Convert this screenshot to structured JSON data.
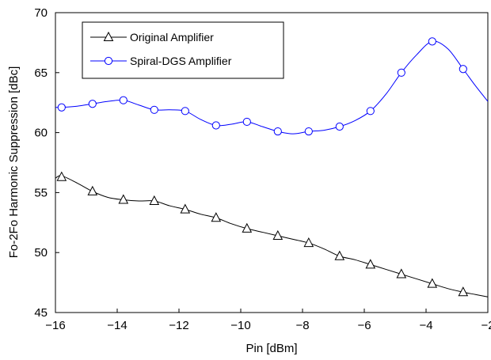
{
  "chart_data": {
    "type": "line",
    "xlabel": "Pin [dBm]",
    "ylabel": "Fo-2Fo Harmonic Suppression [dBc]",
    "xlim": [
      -16,
      -2
    ],
    "ylim": [
      45,
      70
    ],
    "x_ticks": [
      -16,
      -14,
      -12,
      -10,
      -8,
      -6,
      -4,
      -2
    ],
    "y_ticks": [
      45,
      50,
      55,
      60,
      65,
      70
    ],
    "x_tick_labels": [
      "−16",
      "−14",
      "−12",
      "−10",
      "−8",
      "−6",
      "−4",
      "−2"
    ],
    "y_tick_labels": [
      "45",
      "50",
      "55",
      "60",
      "65",
      "70"
    ],
    "grid": false,
    "legend_position": "top-left",
    "series": [
      {
        "name": "Original Amplifier",
        "color": "#000000",
        "marker": "triangle",
        "x": [
          -15.8,
          -14.8,
          -13.8,
          -12.8,
          -11.8,
          -10.8,
          -9.8,
          -8.8,
          -7.8,
          -6.8,
          -5.8,
          -4.8,
          -3.8,
          -2.8
        ],
        "y": [
          56.3,
          55.1,
          54.4,
          54.3,
          53.6,
          52.9,
          52.0,
          51.4,
          50.8,
          49.7,
          49.0,
          48.2,
          47.4,
          46.7
        ],
        "curve_x": [
          -16.0,
          -15.8,
          -15.3,
          -14.8,
          -14.3,
          -13.8,
          -13.3,
          -12.8,
          -12.3,
          -11.8,
          -11.3,
          -10.8,
          -10.3,
          -9.8,
          -9.3,
          -8.8,
          -8.3,
          -7.8,
          -7.3,
          -6.8,
          -6.3,
          -5.8,
          -5.3,
          -4.8,
          -4.3,
          -3.8,
          -3.3,
          -2.8,
          -2.4,
          -2.0
        ],
        "curve_y": [
          56.2,
          56.4,
          55.8,
          55.1,
          54.6,
          54.4,
          54.3,
          54.3,
          53.9,
          53.6,
          53.2,
          52.9,
          52.4,
          52.0,
          51.7,
          51.4,
          51.1,
          50.8,
          50.3,
          49.7,
          49.4,
          49.0,
          48.6,
          48.2,
          47.8,
          47.4,
          47.0,
          46.7,
          46.5,
          46.3
        ]
      },
      {
        "name": "Spiral-DGS Amplifier",
        "color": "#0000ff",
        "marker": "circle",
        "x": [
          -15.8,
          -14.8,
          -13.8,
          -12.8,
          -11.8,
          -10.8,
          -9.8,
          -8.8,
          -7.8,
          -6.8,
          -5.8,
          -4.8,
          -3.8,
          -2.8
        ],
        "y": [
          62.1,
          62.4,
          62.7,
          61.9,
          61.8,
          60.6,
          60.9,
          60.1,
          60.1,
          60.5,
          61.8,
          65.0,
          67.6,
          65.3
        ],
        "curve_x": [
          -16.0,
          -15.8,
          -15.3,
          -14.8,
          -14.3,
          -13.8,
          -13.3,
          -12.8,
          -12.3,
          -11.8,
          -11.3,
          -10.8,
          -10.3,
          -9.8,
          -9.3,
          -8.8,
          -8.3,
          -7.8,
          -7.3,
          -6.8,
          -6.3,
          -5.8,
          -5.3,
          -4.8,
          -4.3,
          -3.8,
          -3.3,
          -2.8,
          -2.4,
          -2.0
        ],
        "curve_y": [
          62.1,
          62.1,
          62.2,
          62.4,
          62.6,
          62.7,
          62.3,
          61.9,
          61.9,
          61.8,
          61.1,
          60.6,
          60.7,
          60.9,
          60.5,
          60.1,
          59.9,
          60.1,
          60.2,
          60.5,
          61.0,
          61.8,
          63.2,
          65.0,
          66.5,
          67.6,
          67.0,
          65.3,
          63.9,
          62.6
        ]
      }
    ]
  }
}
